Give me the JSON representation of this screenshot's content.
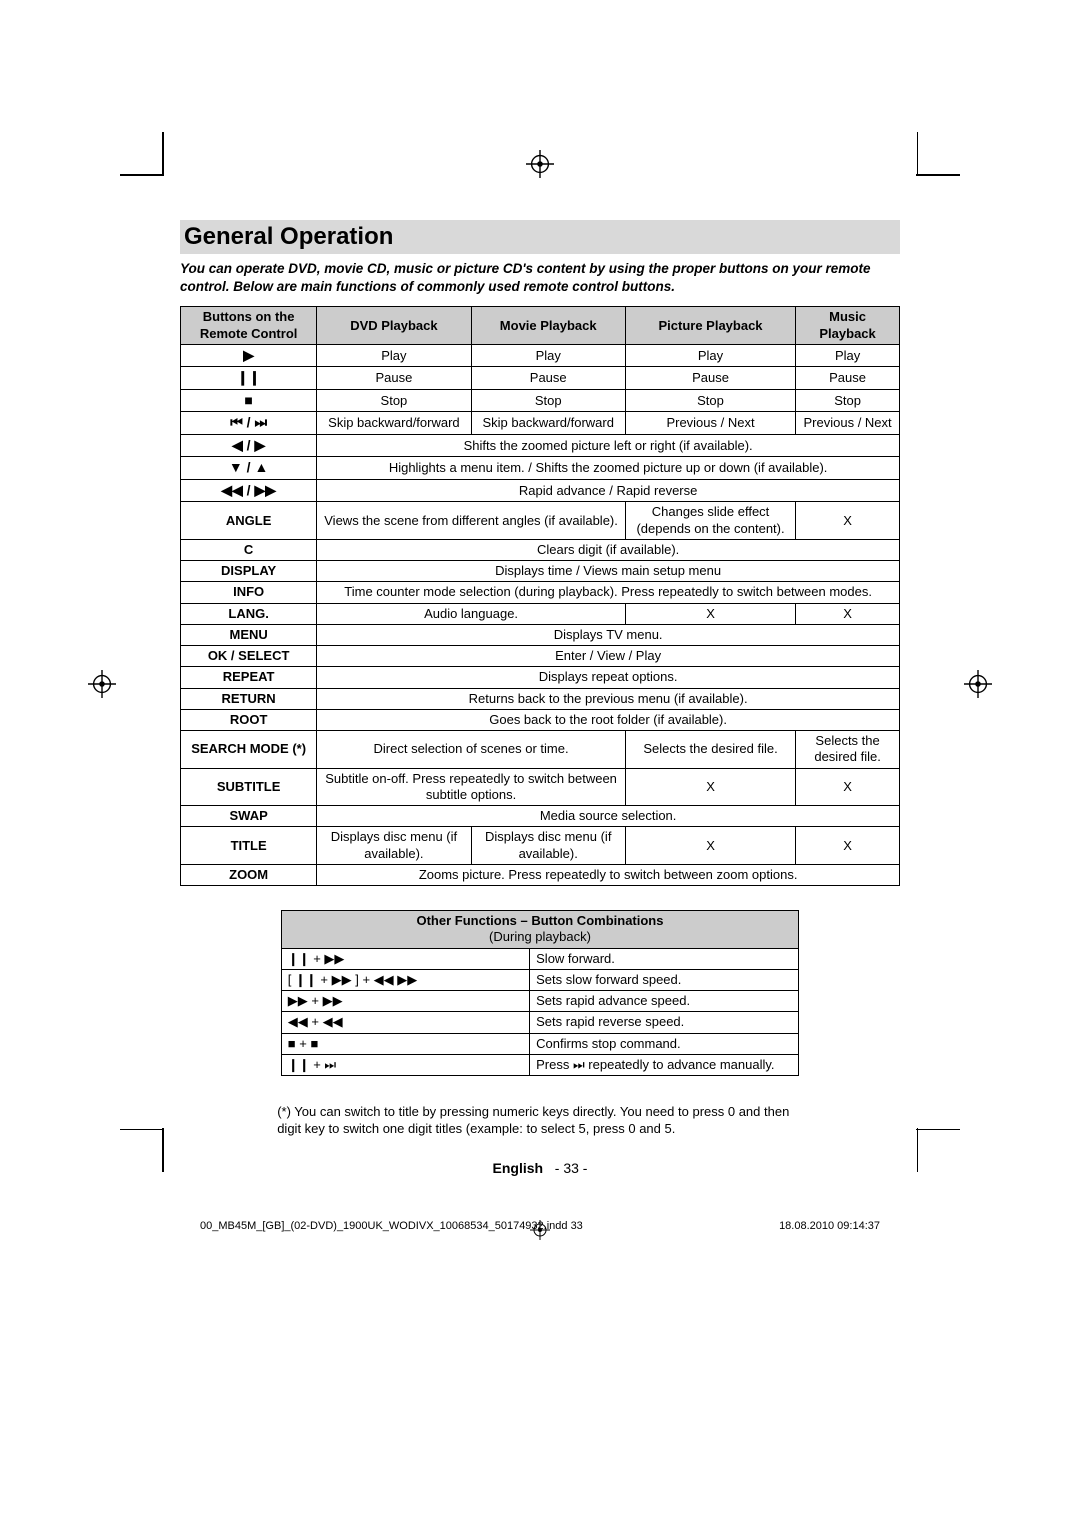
{
  "title": "General Operation",
  "intro": "You can operate DVD, movie CD, music or picture CD's content by using the proper buttons on your remote control. Below are main functions of commonly used remote control buttons.",
  "main_table": {
    "header": [
      "Buttons on the Remote Control",
      "DVD Playback",
      "Movie Playback",
      "Picture Playback",
      "Music Playback"
    ],
    "rows": [
      {
        "btn_icon": "▶",
        "dvd": "Play",
        "movie": "Play",
        "picture": "Play",
        "music": "Play"
      },
      {
        "btn_icon": "❙❙",
        "dvd": "Pause",
        "movie": "Pause",
        "picture": "Pause",
        "music": "Pause"
      },
      {
        "btn_icon": "■",
        "dvd": "Stop",
        "movie": "Stop",
        "picture": "Stop",
        "music": "Stop"
      },
      {
        "btn_icon": "⏮ / ⏭",
        "dvd": "Skip backward/forward",
        "movie": "Skip backward/forward",
        "picture": "Previous / Next",
        "music": "Previous / Next"
      },
      {
        "btn_icon": "◀ / ▶",
        "span": "Shifts the zoomed picture left or right (if available)."
      },
      {
        "btn_icon": "▼ / ▲",
        "span": "Highlights a menu item. / Shifts the zoomed picture up or down (if available)."
      },
      {
        "btn_icon": "◀◀ / ▶▶",
        "span": "Rapid advance / Rapid reverse"
      },
      {
        "btn": "ANGLE",
        "dvdmovie": "Views the scene from different angles (if available).",
        "picture": "Changes slide effect (depends on the content).",
        "music": "X"
      },
      {
        "btn": "C",
        "span": "Clears digit (if available)."
      },
      {
        "btn": "DISPLAY",
        "span": "Displays time / Views main setup menu"
      },
      {
        "btn": "INFO",
        "span": "Time counter mode selection (during playback). Press repeatedly to switch between modes."
      },
      {
        "btn": "LANG.",
        "dvdmovie": "Audio language.",
        "picture": "X",
        "music": "X"
      },
      {
        "btn": "MENU",
        "span": "Displays TV menu."
      },
      {
        "btn": "OK / SELECT",
        "span": "Enter / View / Play"
      },
      {
        "btn": "REPEAT",
        "span": "Displays repeat options."
      },
      {
        "btn": "RETURN",
        "span": "Returns back to the previous menu (if available)."
      },
      {
        "btn": "ROOT",
        "span": "Goes back to the root folder (if available)."
      },
      {
        "btn": "SEARCH MODE (*)",
        "dvdmovie": "Direct selection of scenes or time.",
        "picture": "Selects the desired file.",
        "music": "Selects the desired file."
      },
      {
        "btn": "SUBTITLE",
        "dvdmovie": "Subtitle on-off. Press repeatedly to switch between subtitle options.",
        "picture": "X",
        "music": "X"
      },
      {
        "btn": "SWAP",
        "span": "Media source selection."
      },
      {
        "btn": "TITLE",
        "dvd": "Displays disc menu (if available).",
        "movie": "Displays disc menu (if available).",
        "picture": "X",
        "music": "X"
      },
      {
        "btn": "ZOOM",
        "span": "Zooms picture. Press repeatedly to switch between zoom options."
      }
    ]
  },
  "combo_table": {
    "header": "Other Functions – Button Combinations",
    "subheader": "(During playback)",
    "rows": [
      {
        "combo": "❙❙  +  ▶▶",
        "desc": "Slow forward."
      },
      {
        "combo": "[ ❙❙  +  ▶▶ ]  +  ◀◀ ▶▶",
        "desc": "Sets slow forward speed."
      },
      {
        "combo": "▶▶  +  ▶▶",
        "desc": "Sets rapid advance speed."
      },
      {
        "combo": "◀◀  +  ◀◀",
        "desc": "Sets rapid reverse speed."
      },
      {
        "combo": "■  +  ■",
        "desc": "Confirms stop command."
      },
      {
        "combo": "❙❙  +  ⏭",
        "desc": "Press ⏭ repeatedly to advance manually."
      }
    ]
  },
  "footnote": "(*) You can switch to title by pressing numeric keys directly. You need to press 0 and then digit key to switch one digit titles (example: to select 5, press 0 and 5.",
  "footer": {
    "lang": "English",
    "page": "- 33 -"
  },
  "print": {
    "file": "00_MB45M_[GB]_(02-DVD)_1900UK_WODIVX_10068534_50174932.indd   33",
    "timestamp": "18.08.2010   09:14:37"
  },
  "style": {
    "header_bg": "#cccccc",
    "title_bg": "#d9d9d9",
    "border": "#000000",
    "font_size_body": 13,
    "font_size_title": 24
  }
}
